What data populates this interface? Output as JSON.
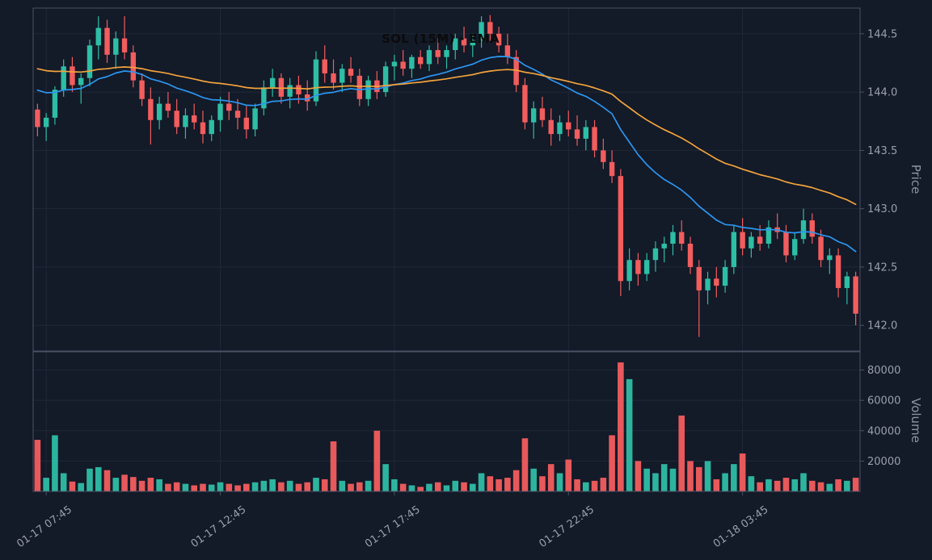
{
  "chart_data": {
    "type": "candlestick",
    "title": "SOL (15M) - EMA",
    "symbol": "SOL",
    "interval": "15M",
    "price_axis": {
      "label": "Price",
      "tick_labels": [
        "144.5",
        "144.0",
        "143.5",
        "143.0",
        "142.5",
        "142.0"
      ],
      "range": [
        141.78,
        144.72
      ]
    },
    "volume_axis": {
      "label": "Volume",
      "tick_labels": [
        "80000",
        "60000",
        "40000",
        "20000"
      ],
      "range": [
        0,
        92000
      ]
    },
    "x_axis": {
      "ticks": [
        {
          "index": 1,
          "label": "01-17 07:45"
        },
        {
          "index": 21,
          "label": "01-17 12:45"
        },
        {
          "index": 41,
          "label": "01-17 17:45"
        },
        {
          "index": 61,
          "label": "01-17 22:45"
        },
        {
          "index": 81,
          "label": "01-18 03:45"
        }
      ]
    },
    "columns": [
      "open",
      "high",
      "low",
      "close",
      "volume"
    ],
    "candles": [
      [
        143.85,
        143.9,
        143.62,
        143.7,
        34000
      ],
      [
        143.7,
        143.82,
        143.58,
        143.78,
        9000
      ],
      [
        143.78,
        144.05,
        143.72,
        144.02,
        37000
      ],
      [
        144.02,
        144.28,
        143.96,
        144.22,
        12000
      ],
      [
        144.22,
        144.3,
        144.0,
        144.06,
        6500
      ],
      [
        144.06,
        144.16,
        143.9,
        144.12,
        5500
      ],
      [
        144.12,
        144.45,
        144.05,
        144.4,
        15000
      ],
      [
        144.4,
        144.65,
        144.28,
        144.55,
        16000
      ],
      [
        144.55,
        144.62,
        144.25,
        144.32,
        14000
      ],
      [
        144.32,
        144.52,
        144.2,
        144.46,
        9000
      ],
      [
        144.46,
        144.65,
        144.28,
        144.34,
        11000
      ],
      [
        144.34,
        144.4,
        144.04,
        144.1,
        9500
      ],
      [
        144.1,
        144.16,
        143.88,
        143.94,
        7000
      ],
      [
        143.94,
        144.04,
        143.55,
        143.76,
        9000
      ],
      [
        143.76,
        143.96,
        143.68,
        143.9,
        8000
      ],
      [
        143.9,
        144.0,
        143.78,
        143.84,
        5000
      ],
      [
        143.84,
        143.94,
        143.64,
        143.7,
        6000
      ],
      [
        143.7,
        143.86,
        143.6,
        143.8,
        5000
      ],
      [
        143.8,
        143.9,
        143.68,
        143.74,
        4000
      ],
      [
        143.74,
        143.84,
        143.56,
        143.64,
        5000
      ],
      [
        143.64,
        143.8,
        143.58,
        143.76,
        4500
      ],
      [
        143.76,
        143.96,
        143.66,
        143.9,
        6000
      ],
      [
        143.9,
        144.0,
        143.76,
        143.84,
        5000
      ],
      [
        143.84,
        143.94,
        143.68,
        143.78,
        4000
      ],
      [
        143.78,
        143.88,
        143.6,
        143.68,
        5000
      ],
      [
        143.68,
        143.9,
        143.62,
        143.86,
        6000
      ],
      [
        143.86,
        144.1,
        143.8,
        144.04,
        7000
      ],
      [
        144.04,
        144.2,
        143.96,
        144.12,
        8000
      ],
      [
        144.12,
        144.16,
        143.9,
        143.96,
        6000
      ],
      [
        143.96,
        144.12,
        143.86,
        144.06,
        7000
      ],
      [
        144.06,
        144.14,
        143.9,
        143.98,
        5000
      ],
      [
        143.98,
        144.1,
        143.84,
        143.92,
        6000
      ],
      [
        143.92,
        144.35,
        143.88,
        144.28,
        9000
      ],
      [
        144.28,
        144.4,
        144.08,
        144.16,
        8000
      ],
      [
        144.16,
        144.28,
        144.02,
        144.08,
        33000
      ],
      [
        144.08,
        144.24,
        144.0,
        144.2,
        7000
      ],
      [
        144.2,
        144.3,
        144.08,
        144.14,
        5000
      ],
      [
        144.14,
        144.2,
        143.88,
        143.94,
        6000
      ],
      [
        143.94,
        144.14,
        143.88,
        144.1,
        7000
      ],
      [
        144.1,
        144.18,
        143.94,
        144.0,
        40000
      ],
      [
        144.0,
        144.26,
        143.96,
        144.22,
        18000
      ],
      [
        144.22,
        144.32,
        144.1,
        144.26,
        8000
      ],
      [
        144.26,
        144.36,
        144.14,
        144.2,
        5000
      ],
      [
        144.2,
        144.32,
        144.12,
        144.3,
        4000
      ],
      [
        144.3,
        144.36,
        144.2,
        144.24,
        3000
      ],
      [
        144.24,
        144.4,
        144.18,
        144.36,
        5000
      ],
      [
        144.36,
        144.46,
        144.24,
        144.3,
        6000
      ],
      [
        144.3,
        144.4,
        144.2,
        144.36,
        4000
      ],
      [
        144.36,
        144.5,
        144.28,
        144.46,
        7000
      ],
      [
        144.46,
        144.56,
        144.34,
        144.4,
        6000
      ],
      [
        144.4,
        144.5,
        144.3,
        144.44,
        5000
      ],
      [
        144.44,
        144.65,
        144.38,
        144.6,
        12000
      ],
      [
        144.6,
        144.66,
        144.44,
        144.5,
        10000
      ],
      [
        144.5,
        144.56,
        144.34,
        144.4,
        8000
      ],
      [
        144.4,
        144.5,
        144.24,
        144.3,
        9000
      ],
      [
        144.3,
        144.36,
        144.0,
        144.06,
        14000
      ],
      [
        144.06,
        144.12,
        143.68,
        143.74,
        35000
      ],
      [
        143.74,
        143.92,
        143.6,
        143.86,
        15000
      ],
      [
        143.86,
        143.96,
        143.7,
        143.76,
        10000
      ],
      [
        143.76,
        143.86,
        143.54,
        143.64,
        18000
      ],
      [
        143.64,
        143.8,
        143.58,
        143.74,
        12000
      ],
      [
        143.74,
        143.84,
        143.62,
        143.68,
        21000
      ],
      [
        143.68,
        143.8,
        143.54,
        143.6,
        8000
      ],
      [
        143.6,
        143.76,
        143.5,
        143.7,
        6000
      ],
      [
        143.7,
        143.76,
        143.44,
        143.5,
        7000
      ],
      [
        143.5,
        143.6,
        143.34,
        143.4,
        9000
      ],
      [
        143.4,
        143.5,
        143.22,
        143.28,
        37000
      ],
      [
        143.28,
        143.34,
        142.25,
        142.38,
        85000
      ],
      [
        142.38,
        142.66,
        142.3,
        142.56,
        74000
      ],
      [
        142.56,
        142.62,
        142.34,
        142.44,
        20000
      ],
      [
        142.44,
        142.62,
        142.38,
        142.56,
        15000
      ],
      [
        142.56,
        142.72,
        142.46,
        142.66,
        12000
      ],
      [
        142.66,
        142.76,
        142.54,
        142.7,
        18000
      ],
      [
        142.7,
        142.86,
        142.6,
        142.8,
        15000
      ],
      [
        142.8,
        142.9,
        142.64,
        142.7,
        50000
      ],
      [
        142.7,
        142.76,
        142.44,
        142.5,
        20000
      ],
      [
        142.5,
        142.56,
        141.9,
        142.3,
        16000
      ],
      [
        142.3,
        142.46,
        142.18,
        142.4,
        20000
      ],
      [
        142.4,
        142.5,
        142.24,
        142.34,
        8000
      ],
      [
        142.34,
        142.56,
        142.28,
        142.5,
        12000
      ],
      [
        142.5,
        142.86,
        142.44,
        142.8,
        18000
      ],
      [
        142.8,
        142.92,
        142.6,
        142.66,
        25000
      ],
      [
        142.66,
        142.8,
        142.58,
        142.76,
        10000
      ],
      [
        142.76,
        142.86,
        142.64,
        142.7,
        6000
      ],
      [
        142.7,
        142.9,
        142.66,
        142.84,
        8000
      ],
      [
        142.84,
        142.96,
        142.74,
        142.8,
        7000
      ],
      [
        142.8,
        142.86,
        142.54,
        142.6,
        9000
      ],
      [
        142.6,
        142.8,
        142.56,
        142.74,
        8000
      ],
      [
        142.74,
        143.0,
        142.7,
        142.9,
        12000
      ],
      [
        142.9,
        142.96,
        142.7,
        142.76,
        7000
      ],
      [
        142.76,
        142.82,
        142.5,
        142.56,
        6000
      ],
      [
        142.56,
        142.66,
        142.44,
        142.6,
        5000
      ],
      [
        142.6,
        142.66,
        142.24,
        142.32,
        8000
      ],
      [
        142.32,
        142.46,
        142.18,
        142.42,
        7000
      ],
      [
        142.42,
        142.46,
        142.0,
        142.1,
        9000
      ]
    ],
    "overlays": [
      {
        "name": "EMA fast",
        "type": "ema",
        "period": 20,
        "seed": 144.05,
        "color": "#2b96f1"
      },
      {
        "name": "EMA slow",
        "type": "ema",
        "period": 50,
        "seed": 144.22,
        "color": "#f2a33c"
      }
    ],
    "colors": {
      "background": "#131a28",
      "up": "#2ebda5",
      "down": "#f25d5e",
      "grid": "#202838",
      "spine": "#4a5264",
      "tick_text": "#9aa0ab",
      "axis_label_text": "#8d94a2",
      "title_text": "#0b0b0b"
    }
  }
}
